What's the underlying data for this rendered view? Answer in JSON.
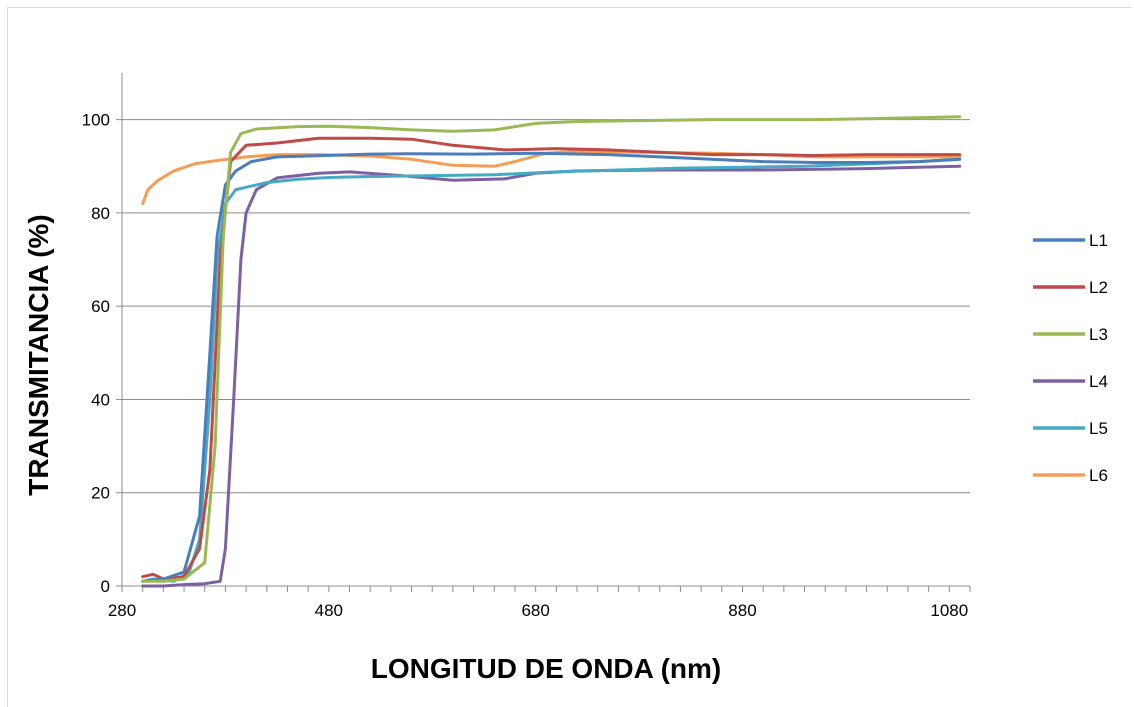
{
  "chart_data": {
    "type": "line",
    "title": "",
    "xlabel": "LONGITUD DE ONDA (nm)",
    "ylabel": "TRANSMITANCIA (%)",
    "xlim": [
      280,
      1100
    ],
    "ylim": [
      0,
      110
    ],
    "xticks": [
      280,
      480,
      680,
      880,
      1080
    ],
    "yticks": [
      0,
      20,
      40,
      60,
      80,
      100
    ],
    "grid": "horizontal",
    "legend_position": "right",
    "series": [
      {
        "name": "L1",
        "color": "#4a7ebb",
        "points": [
          [
            300,
            1
          ],
          [
            320,
            1.5
          ],
          [
            340,
            3
          ],
          [
            355,
            15
          ],
          [
            365,
            50
          ],
          [
            372,
            75
          ],
          [
            380,
            86
          ],
          [
            390,
            89
          ],
          [
            405,
            91
          ],
          [
            430,
            92
          ],
          [
            460,
            92.2
          ],
          [
            520,
            92.6
          ],
          [
            560,
            92.7
          ],
          [
            620,
            92.6
          ],
          [
            680,
            92.8
          ],
          [
            750,
            92.5
          ],
          [
            800,
            92
          ],
          [
            850,
            91.5
          ],
          [
            900,
            91
          ],
          [
            950,
            90.8
          ],
          [
            1000,
            90.8
          ],
          [
            1050,
            91
          ],
          [
            1090,
            91.5
          ]
        ]
      },
      {
        "name": "L2",
        "color": "#be4b48",
        "points": [
          [
            300,
            2
          ],
          [
            310,
            2.5
          ],
          [
            320,
            1.5
          ],
          [
            340,
            2
          ],
          [
            355,
            8
          ],
          [
            365,
            25
          ],
          [
            375,
            70
          ],
          [
            385,
            91
          ],
          [
            400,
            94.5
          ],
          [
            430,
            95
          ],
          [
            450,
            95.5
          ],
          [
            470,
            96
          ],
          [
            520,
            96
          ],
          [
            560,
            95.8
          ],
          [
            600,
            94.5
          ],
          [
            650,
            93.5
          ],
          [
            700,
            93.8
          ],
          [
            750,
            93.5
          ],
          [
            800,
            93
          ],
          [
            850,
            92.5
          ],
          [
            900,
            92.5
          ],
          [
            950,
            92.3
          ],
          [
            1000,
            92.5
          ],
          [
            1050,
            92.5
          ],
          [
            1090,
            92.5
          ]
        ]
      },
      {
        "name": "L3",
        "color": "#98b954",
        "points": [
          [
            300,
            1
          ],
          [
            320,
            1
          ],
          [
            340,
            1.5
          ],
          [
            360,
            5
          ],
          [
            370,
            30
          ],
          [
            378,
            75
          ],
          [
            385,
            93
          ],
          [
            395,
            97
          ],
          [
            410,
            98
          ],
          [
            450,
            98.5
          ],
          [
            480,
            98.6
          ],
          [
            520,
            98.3
          ],
          [
            560,
            97.8
          ],
          [
            600,
            97.5
          ],
          [
            640,
            97.8
          ],
          [
            680,
            99.2
          ],
          [
            720,
            99.6
          ],
          [
            780,
            99.8
          ],
          [
            850,
            100
          ],
          [
            900,
            100
          ],
          [
            950,
            100
          ],
          [
            1000,
            100.2
          ],
          [
            1050,
            100.4
          ],
          [
            1090,
            100.6
          ]
        ]
      },
      {
        "name": "L4",
        "color": "#7d60a0",
        "points": [
          [
            300,
            0
          ],
          [
            320,
            0
          ],
          [
            340,
            0.3
          ],
          [
            360,
            0.5
          ],
          [
            375,
            1
          ],
          [
            380,
            8
          ],
          [
            388,
            40
          ],
          [
            395,
            70
          ],
          [
            400,
            80
          ],
          [
            410,
            85
          ],
          [
            430,
            87.5
          ],
          [
            470,
            88.5
          ],
          [
            500,
            88.8
          ],
          [
            550,
            88
          ],
          [
            600,
            87
          ],
          [
            650,
            87.3
          ],
          [
            680,
            88.5
          ],
          [
            720,
            89
          ],
          [
            800,
            89.2
          ],
          [
            900,
            89.2
          ],
          [
            1000,
            89.5
          ],
          [
            1050,
            89.8
          ],
          [
            1090,
            90
          ]
        ]
      },
      {
        "name": "L5",
        "color": "#46aac5",
        "points": [
          [
            300,
            1
          ],
          [
            310,
            1.5
          ],
          [
            330,
            1
          ],
          [
            345,
            3
          ],
          [
            355,
            10
          ],
          [
            365,
            40
          ],
          [
            372,
            70
          ],
          [
            380,
            82
          ],
          [
            390,
            85
          ],
          [
            420,
            86.5
          ],
          [
            450,
            87.2
          ],
          [
            480,
            87.6
          ],
          [
            520,
            87.8
          ],
          [
            580,
            88
          ],
          [
            640,
            88.2
          ],
          [
            700,
            88.8
          ],
          [
            760,
            89.2
          ],
          [
            820,
            89.6
          ],
          [
            880,
            89.8
          ],
          [
            940,
            90
          ],
          [
            1000,
            90.5
          ],
          [
            1050,
            91
          ],
          [
            1090,
            91.5
          ]
        ]
      },
      {
        "name": "L6",
        "color": "#f59d56",
        "points": [
          [
            300,
            82
          ],
          [
            305,
            85
          ],
          [
            315,
            87
          ],
          [
            330,
            89
          ],
          [
            350,
            90.5
          ],
          [
            370,
            91.2
          ],
          [
            400,
            92
          ],
          [
            430,
            92.5
          ],
          [
            470,
            92.5
          ],
          [
            520,
            92.2
          ],
          [
            560,
            91.5
          ],
          [
            600,
            90.2
          ],
          [
            640,
            90
          ],
          [
            660,
            91
          ],
          [
            690,
            92.8
          ],
          [
            720,
            93.2
          ],
          [
            780,
            93
          ],
          [
            850,
            92.8
          ],
          [
            900,
            92.5
          ],
          [
            950,
            92
          ],
          [
            1000,
            92
          ],
          [
            1050,
            92
          ],
          [
            1090,
            92
          ]
        ]
      }
    ]
  }
}
